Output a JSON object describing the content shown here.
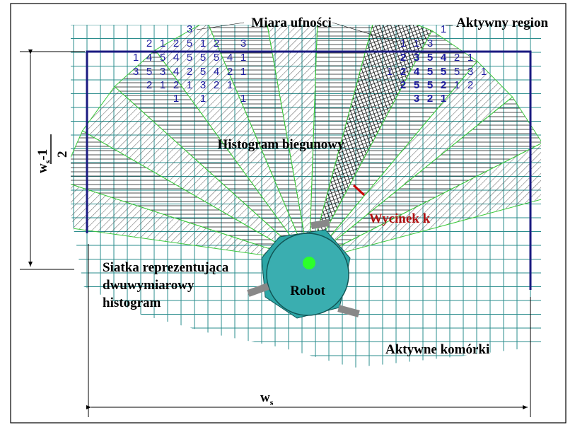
{
  "labels": {
    "confidence": "Miara ufności",
    "active_region": "Aktywny region",
    "polar_histogram": "Histogram biegunowy",
    "sector": "Wycinek k",
    "grid_caption": [
      "Siatka reprezentująca",
      "dwuwymiarowy",
      "histogram"
    ],
    "robot": "Robot",
    "active_cells": "Aktywne komórki"
  },
  "dimension_width": {
    "main": "w",
    "sub": "s"
  },
  "dimension_height": {
    "main": "w",
    "sub": "s",
    "rest": "-1",
    "denominator": "2"
  },
  "left_grid": [
    [
      null,
      null,
      null,
      null,
      3,
      null,
      null,
      null,
      null
    ],
    [
      null,
      2,
      1,
      2,
      5,
      1,
      2,
      null,
      3
    ],
    [
      1,
      4,
      5,
      4,
      5,
      5,
      5,
      4,
      1
    ],
    [
      3,
      5,
      3,
      4,
      2,
      5,
      4,
      2,
      1
    ],
    [
      null,
      2,
      1,
      2,
      1,
      3,
      2,
      1,
      null
    ],
    [
      null,
      null,
      null,
      1,
      null,
      1,
      null,
      null,
      1
    ]
  ],
  "right_grid": [
    [
      null,
      null,
      null,
      null,
      1,
      null,
      null,
      null
    ],
    [
      null,
      1,
      1,
      3,
      null,
      null,
      null,
      null
    ],
    [
      null,
      2,
      3,
      5,
      4,
      2,
      1,
      null
    ],
    [
      1,
      2,
      4,
      5,
      5,
      5,
      3,
      1
    ],
    [
      null,
      2,
      5,
      5,
      2,
      1,
      2,
      null
    ],
    [
      null,
      null,
      3,
      2,
      1,
      null,
      null,
      null
    ]
  ]
}
